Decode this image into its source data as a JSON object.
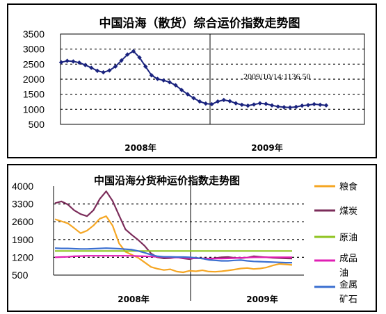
{
  "chart_data": [
    {
      "type": "line",
      "title": "中国沿海（散货）综合运价指数走势图",
      "y_ticks": [
        "3500",
        "3000",
        "2500",
        "2000",
        "1500",
        "1000",
        "500"
      ],
      "ylim": [
        500,
        3500
      ],
      "x_labels": [
        "2008年",
        "2009年"
      ],
      "annotation": "2009/10/14:1136.50",
      "grid": "dashed horizontal",
      "colors": {
        "series": "#1a237e"
      },
      "series": [
        {
          "name": "",
          "values": [
            2560,
            2610,
            2590,
            2550,
            2470,
            2380,
            2280,
            2230,
            2290,
            2420,
            2620,
            2820,
            2930,
            2720,
            2420,
            2130,
            2010,
            1960,
            1900,
            1800,
            1640,
            1500,
            1370,
            1260,
            1190,
            1170,
            1260,
            1310,
            1270,
            1200,
            1150,
            1120,
            1160,
            1200,
            1180,
            1130,
            1090,
            1070,
            1060,
            1080,
            1120,
            1140,
            1170,
            1150,
            1130
          ]
        }
      ]
    },
    {
      "type": "line",
      "title": "中国沿海分货种运价指数走势图",
      "y_ticks": [
        "4000",
        "3300",
        "2600",
        "1900",
        "1200",
        "500"
      ],
      "ylim": [
        500,
        4000
      ],
      "x_labels": [
        "2008年",
        "2009年"
      ],
      "legend_position": "right",
      "grid": "dashed horizontal",
      "series": [
        {
          "name": "粮食",
          "color": "#f5a623",
          "values": [
            2700,
            2620,
            2540,
            2350,
            2150,
            2250,
            2450,
            2720,
            2820,
            2450,
            1750,
            1420,
            1300,
            1180,
            1000,
            820,
            750,
            700,
            730,
            640,
            610,
            670,
            650,
            690,
            640,
            630,
            650,
            680,
            720,
            760,
            780,
            740,
            760,
            800,
            880,
            940,
            920,
            900
          ]
        },
        {
          "name": "煤炭",
          "color": "#7b2c5a",
          "values": [
            3330,
            3400,
            3280,
            3050,
            2900,
            2820,
            3050,
            3500,
            3800,
            3420,
            2850,
            2300,
            2080,
            1880,
            1650,
            1350,
            1200,
            1160,
            1170,
            1200,
            1160,
            1130,
            1180,
            1150,
            1130,
            1170,
            1200,
            1210,
            1180,
            1170,
            1190,
            1240,
            1220,
            1200,
            1180,
            1170,
            1160,
            1150
          ]
        },
        {
          "name": "原油",
          "color": "#8fc31f",
          "values": [
            1450,
            1450,
            1450,
            1450,
            1450,
            1450,
            1450,
            1450,
            1450,
            1450,
            1450,
            1450,
            1450,
            1450,
            1450,
            1450,
            1450,
            1450,
            1450,
            1450,
            1450,
            1450,
            1450,
            1450,
            1450,
            1450,
            1450,
            1450,
            1450,
            1450,
            1450,
            1450,
            1450,
            1450,
            1450,
            1450,
            1450,
            1450
          ]
        },
        {
          "name": "成品油",
          "color": "#e01fb4",
          "values": [
            1200,
            1210,
            1220,
            1240,
            1250,
            1260,
            1260,
            1260,
            1260,
            1260,
            1260,
            1260,
            1260,
            1250,
            1240,
            1230,
            1220,
            1210,
            1200,
            1190,
            1180,
            1170,
            1160,
            1160,
            1150,
            1150,
            1150,
            1160,
            1170,
            1180,
            1190,
            1200,
            1200,
            1200,
            1200,
            1200,
            1200,
            1200
          ]
        },
        {
          "name": "金属矿石",
          "color": "#3a6fd0",
          "values": [
            1560,
            1550,
            1550,
            1540,
            1530,
            1530,
            1540,
            1550,
            1560,
            1550,
            1540,
            1520,
            1500,
            1450,
            1380,
            1300,
            1240,
            1220,
            1220,
            1210,
            1210,
            1200,
            1180,
            1150,
            1100,
            1080,
            1060,
            1060,
            1080,
            1090,
            1060,
            1040,
            1030,
            1020,
            1010,
            1000,
            990,
            990
          ]
        }
      ]
    }
  ]
}
